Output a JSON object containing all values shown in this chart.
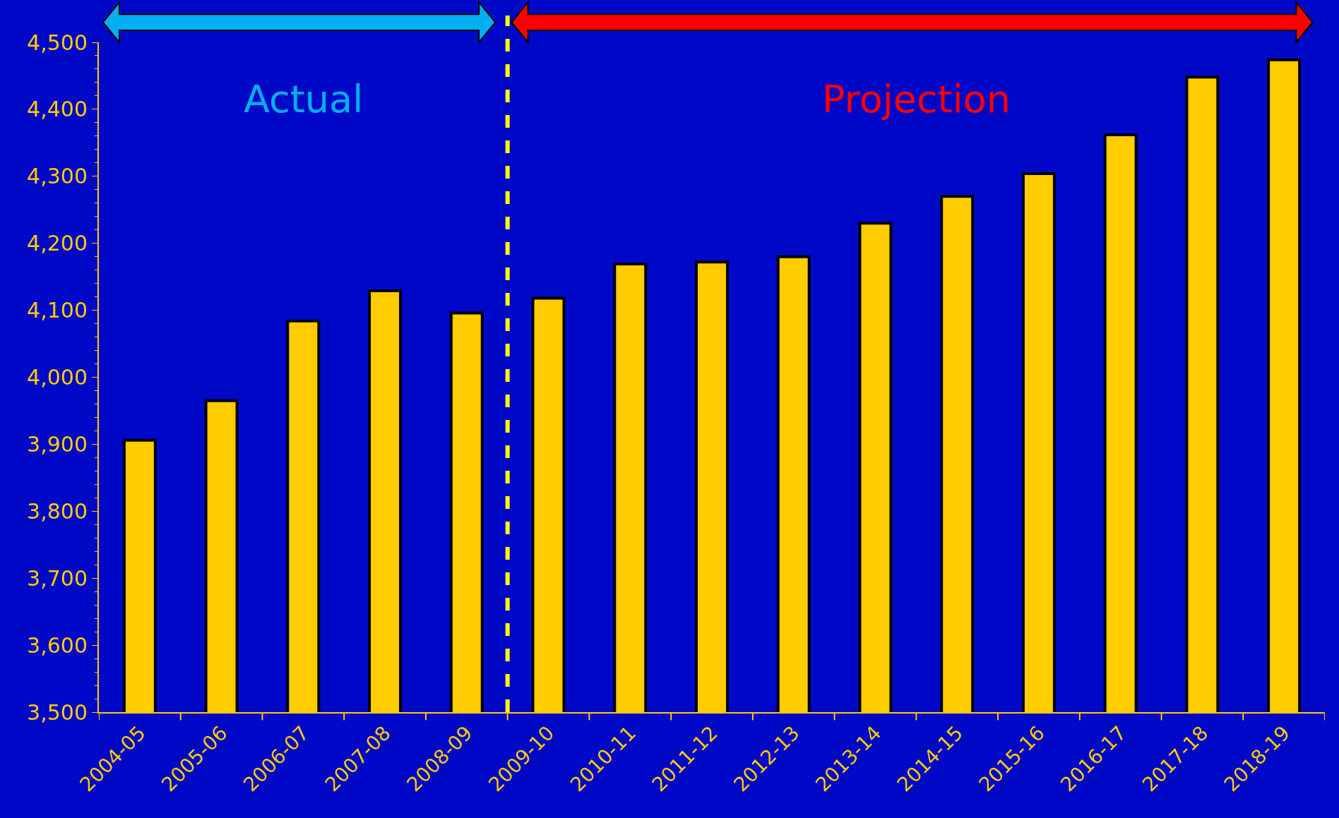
{
  "chart_data": {
    "type": "bar",
    "categories": [
      "2004-05",
      "2005-06",
      "2006-07",
      "2007-08",
      "2008-09",
      "2009-10",
      "2010-11",
      "2011-12",
      "2012-13",
      "2013-14",
      "2014-15",
      "2015-16",
      "2016-17",
      "2017-18",
      "2018-19"
    ],
    "values": [
      3906,
      3965,
      4084,
      4129,
      4096,
      4118,
      4169,
      4172,
      4180,
      4230,
      4270,
      4304,
      4362,
      4448,
      4474
    ],
    "color": "#ffcc00",
    "ylim": [
      3500,
      4500
    ],
    "yticks": [
      {
        "value": 3500,
        "label": "3,500"
      },
      {
        "value": 3600,
        "label": "3,600"
      },
      {
        "value": 3700,
        "label": "3,700"
      },
      {
        "value": 3800,
        "label": "3,800"
      },
      {
        "value": 3900,
        "label": "3,900"
      },
      {
        "value": 4000,
        "label": "4,000"
      },
      {
        "value": 4100,
        "label": "4,100"
      },
      {
        "value": 4200,
        "label": "4,200"
      },
      {
        "value": 4300,
        "label": "4,300"
      },
      {
        "value": 4400,
        "label": "4,400"
      },
      {
        "value": 4500,
        "label": "4,500"
      }
    ],
    "grid": false,
    "legend": false,
    "ref_lines": [
      {
        "axis": "x",
        "value": "2009-10",
        "color": "#ffff00",
        "line_style": "dashed"
      }
    ],
    "annotations": [
      "Actual",
      "Projection"
    ]
  }
}
